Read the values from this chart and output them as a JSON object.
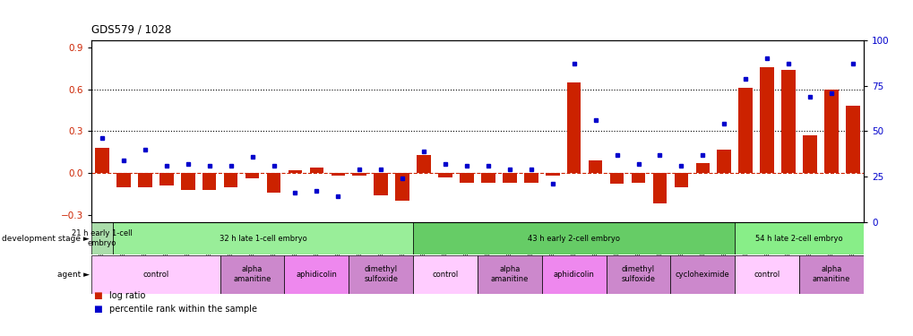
{
  "title": "GDS579 / 1028",
  "samples": [
    "GSM14695",
    "GSM14696",
    "GSM14697",
    "GSM14698",
    "GSM14699",
    "GSM14700",
    "GSM14707",
    "GSM14708",
    "GSM14709",
    "GSM14716",
    "GSM14717",
    "GSM14718",
    "GSM14722",
    "GSM14723",
    "GSM14724",
    "GSM14701",
    "GSM14702",
    "GSM14703",
    "GSM14710",
    "GSM14711",
    "GSM14712",
    "GSM14719",
    "GSM14720",
    "GSM14721",
    "GSM14725",
    "GSM14726",
    "GSM14727",
    "GSM14728",
    "GSM14729",
    "GSM14730",
    "GSM14704",
    "GSM14705",
    "GSM14706",
    "GSM14713",
    "GSM14714",
    "GSM14715"
  ],
  "log_ratio": [
    0.18,
    -0.1,
    -0.1,
    -0.09,
    -0.12,
    -0.12,
    -0.1,
    -0.04,
    -0.14,
    0.02,
    0.04,
    -0.02,
    -0.02,
    -0.16,
    -0.2,
    0.13,
    -0.03,
    -0.07,
    -0.07,
    -0.07,
    -0.07,
    -0.02,
    0.65,
    0.09,
    -0.08,
    -0.07,
    -0.22,
    -0.1,
    0.07,
    0.17,
    0.61,
    0.76,
    0.74,
    0.27,
    0.6,
    0.48
  ],
  "percentile": [
    46,
    34,
    40,
    31,
    32,
    31,
    31,
    36,
    31,
    16,
    17,
    14,
    29,
    29,
    24,
    39,
    32,
    31,
    31,
    29,
    29,
    21,
    87,
    56,
    37,
    32,
    37,
    31,
    37,
    54,
    79,
    90,
    87,
    69,
    71,
    87
  ],
  "dev_stage_regions": [
    {
      "label": "21 h early 1-cell\nembryo",
      "start": 0,
      "end": 0,
      "color": "#aaddaa"
    },
    {
      "label": "32 h late 1-cell embryo",
      "start": 1,
      "end": 14,
      "color": "#99ee99"
    },
    {
      "label": "43 h early 2-cell embryo",
      "start": 15,
      "end": 29,
      "color": "#66cc66"
    },
    {
      "label": "54 h late 2-cell embryo",
      "start": 30,
      "end": 35,
      "color": "#88ee88"
    }
  ],
  "agent_regions": [
    {
      "label": "control",
      "start": 0,
      "end": 5,
      "color": "#ffccff"
    },
    {
      "label": "alpha\namanitine",
      "start": 6,
      "end": 8,
      "color": "#cc88cc"
    },
    {
      "label": "aphidicolin",
      "start": 9,
      "end": 11,
      "color": "#ee88ee"
    },
    {
      "label": "dimethyl\nsulfoxide",
      "start": 12,
      "end": 14,
      "color": "#cc88cc"
    },
    {
      "label": "control",
      "start": 15,
      "end": 17,
      "color": "#ffccff"
    },
    {
      "label": "alpha\namanitine",
      "start": 18,
      "end": 20,
      "color": "#cc88cc"
    },
    {
      "label": "aphidicolin",
      "start": 21,
      "end": 23,
      "color": "#ee88ee"
    },
    {
      "label": "dimethyl\nsulfoxide",
      "start": 24,
      "end": 26,
      "color": "#cc88cc"
    },
    {
      "label": "cycloheximide",
      "start": 27,
      "end": 29,
      "color": "#cc88cc"
    },
    {
      "label": "control",
      "start": 30,
      "end": 32,
      "color": "#ffccff"
    },
    {
      "label": "alpha\namanitine",
      "start": 33,
      "end": 35,
      "color": "#cc88cc"
    }
  ],
  "ylim_left": [
    -0.35,
    0.95
  ],
  "ylim_right": [
    0,
    100
  ],
  "yticks_left": [
    -0.3,
    0.0,
    0.3,
    0.6,
    0.9
  ],
  "yticks_right": [
    0,
    25,
    50,
    75,
    100
  ],
  "bar_color": "#cc2200",
  "dot_color": "#0000cc",
  "zero_line_color": "#cc2200",
  "grid_lines": [
    0.3,
    0.6
  ],
  "background_color": "#ffffff"
}
